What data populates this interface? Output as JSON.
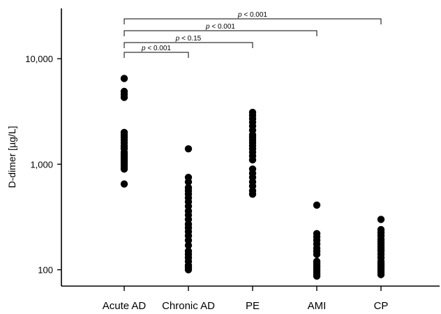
{
  "chart_data": {
    "type": "scatter",
    "ylabel": "D-dimer [µg/L]",
    "yscale": "log",
    "ylim": [
      70,
      30000
    ],
    "yticks": [
      {
        "value": 100,
        "label": "100"
      },
      {
        "value": 1000,
        "label": "1,000"
      },
      {
        "value": 10000,
        "label": "10,000"
      }
    ],
    "categories": [
      "Acute AD",
      "Chronic AD",
      "PE",
      "AMI",
      "CP"
    ],
    "series": [
      {
        "category": "Acute AD",
        "values": [
          6500,
          4900,
          4600,
          4300,
          2000,
          1900,
          1800,
          1700,
          1600,
          1500,
          1450,
          1400,
          1300,
          1250,
          1200,
          1150,
          1100,
          1050,
          1000,
          950,
          900,
          650
        ]
      },
      {
        "category": "Chronic AD",
        "values": [
          1400,
          750,
          680,
          600,
          560,
          520,
          480,
          440,
          400,
          360,
          330,
          300,
          270,
          250,
          230,
          210,
          190,
          170,
          150,
          140,
          130,
          120,
          110,
          105,
          100
        ]
      },
      {
        "category": "PE",
        "values": [
          3100,
          2900,
          2700,
          2500,
          2300,
          2100,
          1900,
          1800,
          1700,
          1600,
          1500,
          1400,
          1300,
          1200,
          1100,
          900,
          820,
          750,
          680,
          620,
          560,
          520
        ]
      },
      {
        "category": "AMI",
        "values": [
          410,
          220,
          205,
          190,
          175,
          160,
          150,
          140,
          120,
          115,
          110,
          105,
          100,
          97,
          93,
          90,
          87
        ]
      },
      {
        "category": "CP",
        "values": [
          300,
          240,
          225,
          210,
          195,
          185,
          175,
          165,
          155,
          150,
          140,
          130,
          120,
          115,
          110,
          105,
          100,
          95,
          90
        ]
      }
    ],
    "comparisons": [
      {
        "from": "Acute AD",
        "to": "Chronic AD",
        "p_symbol": "p",
        "p_text": " < 0.001"
      },
      {
        "from": "Acute AD",
        "to": "PE",
        "p_symbol": "p",
        "p_text": " < 0.15"
      },
      {
        "from": "Acute AD",
        "to": "AMI",
        "p_symbol": "p",
        "p_text": " < 0.001"
      },
      {
        "from": "Acute AD",
        "to": "CP",
        "p_symbol": "p",
        "p_text": " < 0.001"
      }
    ]
  }
}
